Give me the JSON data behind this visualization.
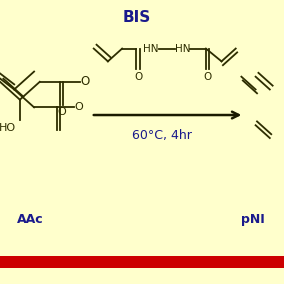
{
  "background_color": "#FFFFCC",
  "bottom_bar_dark": "#8B0000",
  "bottom_bar_bright": "#CC0000",
  "text_bis": "BIS",
  "text_bis_color": "#1a1a8c",
  "text_bis_fontsize": 11,
  "text_condition": "60°C, 4hr",
  "text_condition_color": "#1a1a8c",
  "text_condition_fontsize": 9,
  "text_aac": "AAc",
  "text_pni": "pNI",
  "label_color": "#1a1a8c",
  "label_fontsize": 9,
  "chem_color": "#2d2d00",
  "arrow_color": "#1a1a00",
  "figsize": [
    2.84,
    2.84
  ],
  "dpi": 100
}
